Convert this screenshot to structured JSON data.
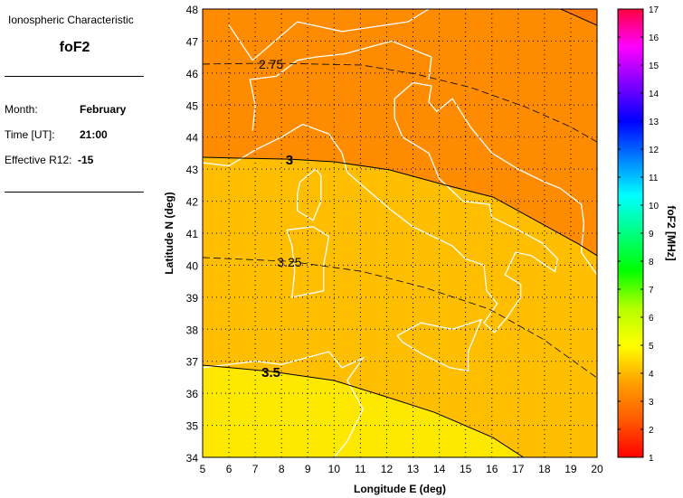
{
  "panel": {
    "characteristic_label": "Ionospheric Characteristic",
    "characteristic": "foF2",
    "month_label": "Month:",
    "month": "February",
    "time_label": "Time [UT]:",
    "time": "21:00",
    "r12_label": "Effective R12:",
    "r12": "-15"
  },
  "chart_data": {
    "type": "contour-map",
    "xlabel": "Longitude E (deg)",
    "ylabel": "Latitude N (deg)",
    "xlim": [
      5,
      20
    ],
    "ylim": [
      34,
      48
    ],
    "xticks": [
      5,
      6,
      7,
      8,
      9,
      10,
      11,
      12,
      13,
      14,
      15,
      16,
      17,
      18,
      19,
      20
    ],
    "yticks": [
      34,
      35,
      36,
      37,
      38,
      39,
      40,
      41,
      42,
      43,
      44,
      45,
      46,
      47,
      48
    ],
    "grid": true,
    "contours": [
      {
        "level": "2.5",
        "label": "",
        "style": "solid",
        "points": [
          [
            18.62,
            48
          ],
          [
            20,
            47.49
          ]
        ]
      },
      {
        "level": "2.75",
        "label": "2.75",
        "style": "dashed",
        "points": [
          [
            5,
            46.28
          ],
          [
            7.6,
            46.31
          ],
          [
            11.05,
            46.25
          ],
          [
            13.1,
            45.97
          ],
          [
            15.2,
            45.55
          ],
          [
            17.25,
            44.95
          ],
          [
            18.97,
            44.33
          ],
          [
            20,
            43.85
          ]
        ]
      },
      {
        "level": "3",
        "label": "3",
        "style": "solid",
        "points": [
          [
            5,
            43.37
          ],
          [
            8.3,
            43.31
          ],
          [
            10,
            43.23
          ],
          [
            12.1,
            42.98
          ],
          [
            14.15,
            42.52
          ],
          [
            16.04,
            42.13
          ],
          [
            17.93,
            41.28
          ],
          [
            19.3,
            40.66
          ],
          [
            20,
            40.3
          ]
        ]
      },
      {
        "level": "3.25",
        "label": "3.25",
        "style": "dashed",
        "points": [
          [
            5,
            40.24
          ],
          [
            8.3,
            40.12
          ],
          [
            11.05,
            39.81
          ],
          [
            13.45,
            39.3
          ],
          [
            15.9,
            38.63
          ],
          [
            17.93,
            37.7
          ],
          [
            20,
            36.48
          ]
        ]
      },
      {
        "level": "3.5",
        "label": "3.5",
        "style": "solid",
        "points": [
          [
            5,
            36.88
          ],
          [
            7.6,
            36.68
          ],
          [
            10,
            36.4
          ],
          [
            12.1,
            35.86
          ],
          [
            13.8,
            35.41
          ],
          [
            16.04,
            34.62
          ],
          [
            17.2,
            34
          ]
        ]
      }
    ],
    "colorbar": {
      "label": "foF2 [MHz]",
      "min": 1,
      "max": 17,
      "ticks": [
        1,
        2,
        3,
        4,
        5,
        6,
        7,
        8,
        9,
        10,
        11,
        12,
        13,
        14,
        15,
        16,
        17
      ],
      "colors": [
        "#ff0000",
        "#ff5a00",
        "#ffa000",
        "#ffff00",
        "#b4ff00",
        "#00ff00",
        "#00ff80",
        "#00ffff",
        "#0080ff",
        "#0000ff",
        "#8000ff",
        "#ff00ff",
        "#ff0040"
      ]
    },
    "band_colors": {
      "below_2.5": "#ff7800",
      "2.5-3": "#ff8c00",
      "3-3.5": "#ffbf00",
      "above_3.5": "#ffe800"
    }
  }
}
